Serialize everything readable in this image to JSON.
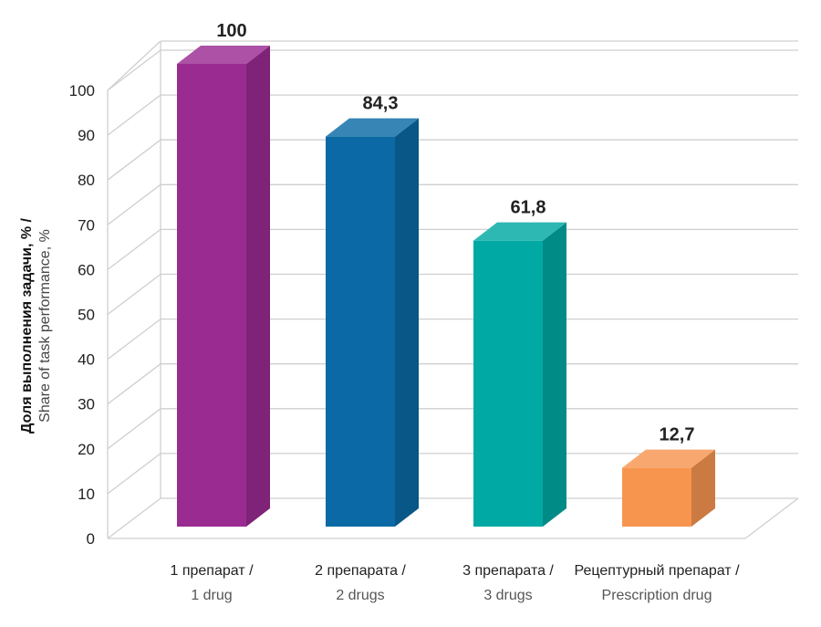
{
  "chart_data": {
    "type": "bar",
    "categories": [
      {
        "line1": "1 препарат /",
        "line2": "1 drug"
      },
      {
        "line1": "2 препарата /",
        "line2": "2 drugs"
      },
      {
        "line1": "3 препарата /",
        "line2": "3 drugs"
      },
      {
        "line1": "Рецептурный препарат /",
        "line2": "Prescription drug"
      }
    ],
    "values": [
      100,
      84.3,
      61.8,
      12.7
    ],
    "value_labels": [
      "100",
      "84,3",
      "61,8",
      "12,7"
    ],
    "colors": [
      "#9a2b91",
      "#0b6aa5",
      "#00a9a4",
      "#f7954f"
    ],
    "ylabel_line1": "Доля выполнения задачи, % /",
    "ylabel_line2": "Share of task performance, %",
    "ylim": [
      0,
      100
    ],
    "yticks": [
      "0",
      "10",
      "20",
      "30",
      "40",
      "50",
      "60",
      "70",
      "80",
      "90",
      "100"
    ],
    "grid": true,
    "style": "3d"
  }
}
